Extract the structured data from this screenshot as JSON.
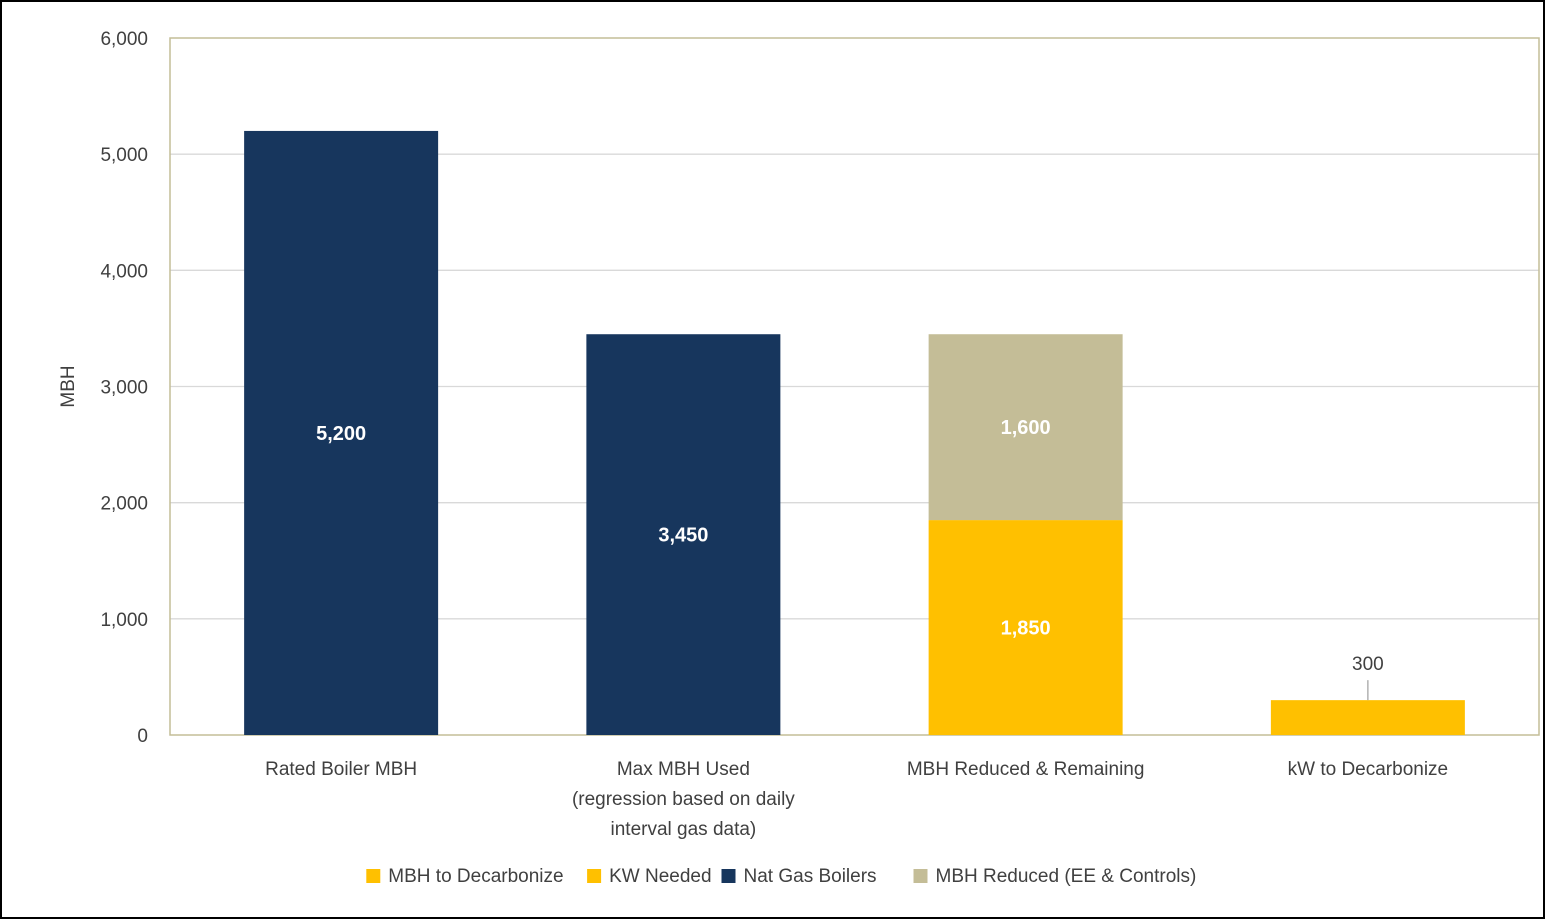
{
  "chart_data": {
    "type": "bar",
    "stacked": true,
    "title": "",
    "xlabel": "",
    "ylabel": "MBH",
    "ylim": [
      0,
      6000
    ],
    "yticks": [
      0,
      1000,
      2000,
      3000,
      4000,
      5000,
      6000
    ],
    "ytick_labels": [
      "0",
      "1,000",
      "2,000",
      "3,000",
      "4,000",
      "5,000",
      "6,000"
    ],
    "grid": true,
    "legend_position": "bottom",
    "categories": [
      [
        "Rated Boiler MBH"
      ],
      [
        "Max MBH Used",
        "(regression based on daily",
        "interval gas data)"
      ],
      [
        "MBH Reduced & Remaining"
      ],
      [
        "kW to Decarbonize"
      ]
    ],
    "series": [
      {
        "name": "MBH to Decarbonize",
        "color": "#FFC000",
        "values": [
          0,
          0,
          1850,
          0
        ],
        "labels": [
          "",
          "",
          "1,850",
          ""
        ]
      },
      {
        "name": "KW Needed",
        "color": "#FFC000",
        "values": [
          0,
          0,
          0,
          300
        ],
        "labels": [
          "",
          "",
          "",
          "300"
        ]
      },
      {
        "name": "Nat Gas Boilers",
        "color": "#17365D",
        "values": [
          5200,
          3450,
          0,
          0
        ],
        "labels": [
          "5,200",
          "3,450",
          "",
          ""
        ]
      },
      {
        "name": "MBH Reduced (EE & Controls)",
        "color": "#C4BD97",
        "values": [
          0,
          0,
          1600,
          0
        ],
        "labels": [
          "",
          "",
          "1,600",
          ""
        ]
      }
    ],
    "colors": {
      "gridline": "#D9D9D9",
      "plot_border": "#C4BD97",
      "axis_text": "#404040",
      "inside_label": "#FFFFFF"
    }
  }
}
